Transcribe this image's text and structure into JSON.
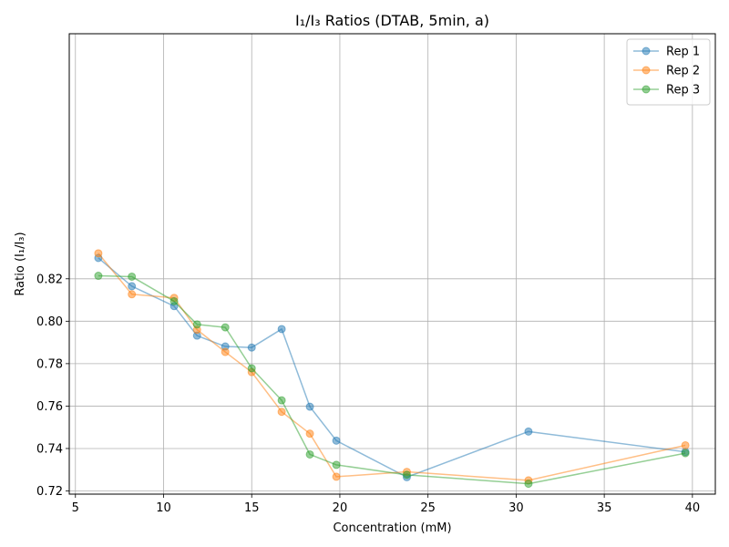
{
  "chart_data": {
    "type": "line",
    "title": "I₁/I₃ Ratios (DTAB, 5min, a)",
    "xlabel": "Concentration (mM)",
    "ylabel": "Ratio (I₁/I₃)",
    "xlim": [
      4.65,
      41.3
    ],
    "ylim": [
      0.7185,
      0.9355
    ],
    "xticks": [
      5,
      10,
      15,
      20,
      25,
      30,
      35,
      40
    ],
    "xtick_labels": [
      "5",
      "10",
      "15",
      "20",
      "25",
      "30",
      "35",
      "40"
    ],
    "yticks": [
      0.72,
      0.74,
      0.76,
      0.78,
      0.8,
      0.82
    ],
    "ytick_labels": [
      "0.72",
      "0.74",
      "0.76",
      "0.78",
      "0.80",
      "0.82"
    ],
    "grid": true,
    "legend": "upper-right",
    "x": [
      6.3,
      8.2,
      10.6,
      11.9,
      13.5,
      15.0,
      16.7,
      18.3,
      19.8,
      23.8,
      30.7,
      39.6
    ],
    "series": [
      {
        "name": "Rep 1",
        "color": "#1f77b4",
        "values": [
          0.8298,
          0.8165,
          0.8071,
          0.7932,
          0.7881,
          0.7876,
          0.7963,
          0.7597,
          0.7437,
          0.7265,
          0.748,
          0.7384
        ]
      },
      {
        "name": "Rep 2",
        "color": "#ff7f0e",
        "values": [
          0.832,
          0.8127,
          0.811,
          0.796,
          0.7855,
          0.776,
          0.7573,
          0.747,
          0.7267,
          0.729,
          0.725,
          0.7415
        ]
      },
      {
        "name": "Rep 3",
        "color": "#2ca02c",
        "values": [
          0.8214,
          0.821,
          0.8094,
          0.7985,
          0.7971,
          0.7778,
          0.7627,
          0.7372,
          0.7323,
          0.7276,
          0.7234,
          0.7378
        ]
      }
    ]
  }
}
